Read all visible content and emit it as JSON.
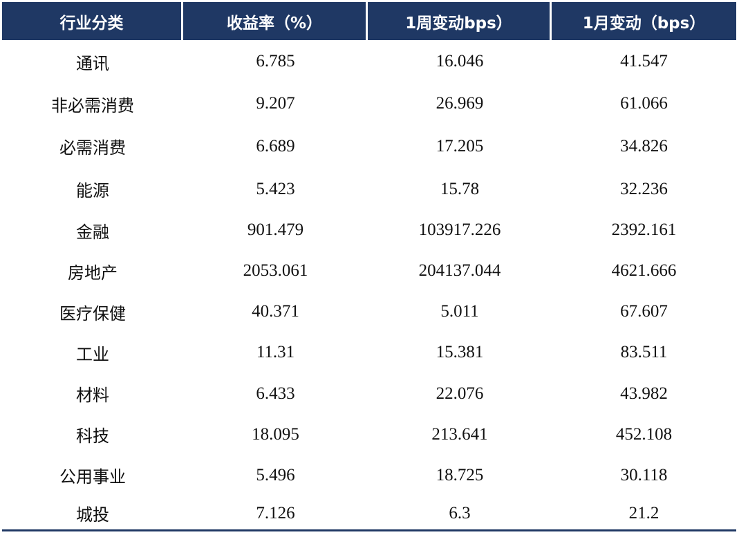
{
  "table": {
    "headers": [
      "行业分类",
      "收益率（%）",
      "1周变动bps）",
      "1月变动（bps）"
    ],
    "rows": [
      [
        "通讯",
        "6.785",
        "16.046",
        "41.547"
      ],
      [
        "非必需消费",
        "9.207",
        "26.969",
        "61.066"
      ],
      [
        "必需消费",
        "6.689",
        "17.205",
        "34.826"
      ],
      [
        "能源",
        "5.423",
        "15.78",
        "32.236"
      ],
      [
        "金融",
        "901.479",
        "103917.226",
        "2392.161"
      ],
      [
        "房地产",
        "2053.061",
        "204137.044",
        "4621.666"
      ],
      [
        "医疗保健",
        "40.371",
        "5.011",
        "67.607"
      ],
      [
        "工业",
        "11.31",
        "15.381",
        "83.511"
      ],
      [
        "材料",
        "6.433",
        "22.076",
        "43.982"
      ],
      [
        "科技",
        "18.095",
        "213.641",
        "452.108"
      ],
      [
        "公用事业",
        "5.496",
        "18.725",
        "30.118"
      ],
      [
        "城投",
        "7.126",
        "6.3",
        "21.2"
      ]
    ]
  },
  "colors": {
    "header_bg": "#1f3864",
    "header_text": "#ffffff",
    "body_text": "#111111",
    "rule": "#1f3864"
  }
}
